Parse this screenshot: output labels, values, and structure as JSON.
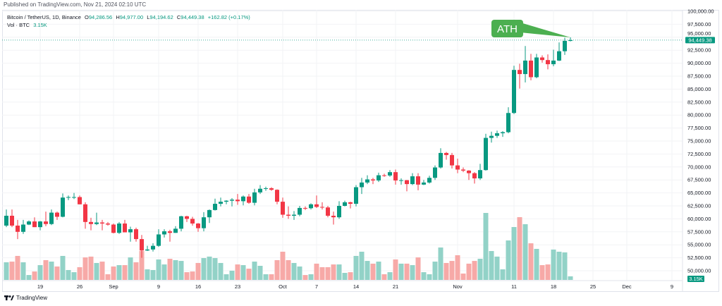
{
  "published": "Published on TradingView.com, Nov 21, 2024 02:10 UTC",
  "legend": {
    "symbol": "Bitcoin / TetherUS, 1D, Binance",
    "o_label": "O",
    "o": "94,286.56",
    "h_label": "H",
    "h": "94,977.00",
    "l_label": "L",
    "l": "94,194.62",
    "c_label": "C",
    "c": "94,449.38",
    "change": "+162.82 (+0.17%)",
    "vol_label": "Vol · BTC",
    "vol": "3.15K"
  },
  "footer": {
    "brand": "TradingView"
  },
  "colors": {
    "up": "#089981",
    "down": "#F23645",
    "vol_up": "#92d2c7",
    "vol_down": "#f7a9a7",
    "annotation": "#4caf50"
  },
  "chart_data": {
    "type": "candlestick",
    "title": "",
    "ylim": [
      50000,
      100000
    ],
    "grid": true,
    "y_ticks": [
      "100,000.00",
      "97,500.00",
      "95,000.00",
      "92,500.00",
      "90,000.00",
      "87,500.00",
      "85,000.00",
      "82,500.00",
      "80,000.00",
      "77,500.00",
      "75,000.00",
      "72,500.00",
      "70,000.00",
      "67,500.00",
      "65,000.00",
      "62,500.00",
      "60,000.00",
      "57,500.00",
      "55,000.00",
      "52,500.00",
      "50,000.00"
    ],
    "x_ticks": [
      {
        "date": "2024-08-19",
        "label": "19"
      },
      {
        "date": "2024-08-26",
        "label": "26"
      },
      {
        "date": "2024-09-01",
        "label": "Sep"
      },
      {
        "date": "2024-09-09",
        "label": "9"
      },
      {
        "date": "2024-09-16",
        "label": "16"
      },
      {
        "date": "2024-09-23",
        "label": "23"
      },
      {
        "date": "2024-10-01",
        "label": "Oct"
      },
      {
        "date": "2024-10-07",
        "label": "7"
      },
      {
        "date": "2024-10-14",
        "label": "14"
      },
      {
        "date": "2024-10-21",
        "label": "21"
      },
      {
        "date": "2024-11-01",
        "label": "Nov"
      },
      {
        "date": "2024-11-11",
        "label": "11"
      },
      {
        "date": "2024-11-18",
        "label": "18"
      },
      {
        "date": "2024-11-25",
        "label": "25"
      },
      {
        "date": "2024-12-01",
        "label": "Dec"
      },
      {
        "date": "2024-12-09",
        "label": "9"
      }
    ],
    "last_price_label": "94,449.38",
    "last_volume_label": "3.15K",
    "annotation": {
      "text": "ATH",
      "date": "2024-11-21",
      "price": 94977
    },
    "candles_columns": [
      "date",
      "open",
      "high",
      "low",
      "close",
      "volume_k"
    ],
    "candles": [
      [
        "2024-08-13",
        58700,
        61800,
        58400,
        60600,
        15.5
      ],
      [
        "2024-08-14",
        60600,
        61800,
        58400,
        58700,
        16.1
      ],
      [
        "2024-08-15",
        58700,
        59800,
        56100,
        57500,
        21.1
      ],
      [
        "2024-08-16",
        57500,
        59800,
        57100,
        58900,
        15.5
      ],
      [
        "2024-08-17",
        58900,
        59700,
        58800,
        59500,
        4.3
      ],
      [
        "2024-08-18",
        59500,
        60300,
        58400,
        58400,
        7.4
      ],
      [
        "2024-08-19",
        58400,
        59600,
        57800,
        59500,
        13.0
      ],
      [
        "2024-08-20",
        59500,
        61400,
        58600,
        59000,
        17.4
      ],
      [
        "2024-08-21",
        59000,
        61800,
        58800,
        61200,
        16.1
      ],
      [
        "2024-08-22",
        61200,
        61400,
        59800,
        60400,
        11.8
      ],
      [
        "2024-08-23",
        60400,
        64900,
        60300,
        64100,
        21.1
      ],
      [
        "2024-08-24",
        64100,
        64500,
        63600,
        64200,
        8.7
      ],
      [
        "2024-08-25",
        64200,
        65000,
        63800,
        64200,
        6.8
      ],
      [
        "2024-08-26",
        64200,
        64500,
        62800,
        62800,
        11.2
      ],
      [
        "2024-08-27",
        62800,
        63200,
        58100,
        59400,
        19.8
      ],
      [
        "2024-08-28",
        59400,
        60200,
        57800,
        59000,
        20.5
      ],
      [
        "2024-08-29",
        59000,
        61200,
        58800,
        59300,
        14.9
      ],
      [
        "2024-08-30",
        59300,
        59800,
        57800,
        59100,
        16.1
      ],
      [
        "2024-08-31",
        59100,
        59400,
        58700,
        58900,
        5.0
      ],
      [
        "2024-09-01",
        58900,
        59100,
        57200,
        57300,
        11.8
      ],
      [
        "2024-09-02",
        57300,
        59400,
        57100,
        59100,
        13.0
      ],
      [
        "2024-09-03",
        59100,
        59800,
        57400,
        57400,
        13.0
      ],
      [
        "2024-09-04",
        57400,
        58500,
        55600,
        58000,
        19.8
      ],
      [
        "2024-09-05",
        58000,
        58300,
        55600,
        56100,
        15.5
      ],
      [
        "2024-09-06",
        56100,
        56900,
        52500,
        53900,
        25.4
      ],
      [
        "2024-09-07",
        53900,
        54800,
        53800,
        54100,
        9.3
      ],
      [
        "2024-09-08",
        54100,
        55300,
        53700,
        54800,
        8.7
      ],
      [
        "2024-09-09",
        54800,
        58000,
        54600,
        57000,
        18.0
      ],
      [
        "2024-09-10",
        57000,
        58000,
        56400,
        57600,
        13.6
      ],
      [
        "2024-09-11",
        57600,
        57900,
        55600,
        57300,
        18.6
      ],
      [
        "2024-09-12",
        57300,
        58600,
        57300,
        58100,
        17.4
      ],
      [
        "2024-09-13",
        58100,
        60600,
        57600,
        60500,
        16.7
      ],
      [
        "2024-09-14",
        60500,
        60600,
        59400,
        60000,
        6.8
      ],
      [
        "2024-09-15",
        60000,
        60400,
        58700,
        59100,
        7.4
      ],
      [
        "2024-09-16",
        59100,
        59200,
        57500,
        58200,
        14.9
      ],
      [
        "2024-09-17",
        58200,
        61300,
        57600,
        60300,
        19.2
      ],
      [
        "2024-09-18",
        60300,
        61800,
        59200,
        61700,
        20.5
      ],
      [
        "2024-09-19",
        61700,
        63900,
        61600,
        62900,
        19.2
      ],
      [
        "2024-09-20",
        62900,
        64100,
        62400,
        63300,
        14.9
      ],
      [
        "2024-09-21",
        63300,
        63600,
        62800,
        63500,
        5.0
      ],
      [
        "2024-09-22",
        63500,
        64000,
        62400,
        63700,
        8.1
      ],
      [
        "2024-09-23",
        63700,
        64800,
        62700,
        63400,
        13.6
      ],
      [
        "2024-09-24",
        63400,
        64500,
        62600,
        64300,
        13.0
      ],
      [
        "2024-09-25",
        64300,
        64800,
        62900,
        63100,
        9.9
      ],
      [
        "2024-09-26",
        63100,
        65800,
        62600,
        65100,
        16.1
      ],
      [
        "2024-09-27",
        65100,
        66500,
        64800,
        65800,
        12.4
      ],
      [
        "2024-09-28",
        65800,
        66200,
        65400,
        65900,
        5.0
      ],
      [
        "2024-09-29",
        65900,
        66100,
        65400,
        65600,
        5.0
      ],
      [
        "2024-09-30",
        65600,
        65700,
        62800,
        63300,
        17.4
      ],
      [
        "2024-10-01",
        63300,
        64100,
        60200,
        60800,
        24.8
      ],
      [
        "2024-10-02",
        60800,
        62400,
        60000,
        60600,
        17.4
      ],
      [
        "2024-10-03",
        60600,
        61500,
        59800,
        60800,
        14.9
      ],
      [
        "2024-10-04",
        60800,
        62500,
        60500,
        62100,
        11.8
      ],
      [
        "2024-10-05",
        62100,
        62400,
        61700,
        62050,
        4.3
      ],
      [
        "2024-10-06",
        62050,
        63000,
        61800,
        62800,
        5.0
      ],
      [
        "2024-10-07",
        62800,
        64500,
        62100,
        62300,
        14.3
      ],
      [
        "2024-10-08",
        62300,
        63200,
        61800,
        62200,
        11.2
      ],
      [
        "2024-10-09",
        62200,
        62500,
        60300,
        60600,
        11.2
      ],
      [
        "2024-10-10",
        60600,
        61400,
        58900,
        60300,
        13.6
      ],
      [
        "2024-10-11",
        60300,
        63400,
        60000,
        62500,
        13.6
      ],
      [
        "2024-10-12",
        62500,
        63500,
        62400,
        63200,
        6.2
      ],
      [
        "2024-10-13",
        63200,
        63300,
        62000,
        62900,
        6.8
      ],
      [
        "2024-10-14",
        62900,
        66500,
        62400,
        66100,
        21.1
      ],
      [
        "2024-10-15",
        66100,
        67900,
        64800,
        67000,
        24.8
      ],
      [
        "2024-10-16",
        67000,
        68400,
        66700,
        67600,
        16.7
      ],
      [
        "2024-10-17",
        67600,
        67900,
        66700,
        67400,
        14.3
      ],
      [
        "2024-10-18",
        67400,
        68900,
        67100,
        68400,
        16.1
      ],
      [
        "2024-10-19",
        68400,
        68700,
        68100,
        68350,
        5.0
      ],
      [
        "2024-10-20",
        68350,
        69400,
        68100,
        69000,
        6.8
      ],
      [
        "2024-10-21",
        69000,
        69500,
        66600,
        67400,
        18.0
      ],
      [
        "2024-10-22",
        67400,
        67800,
        66600,
        67450,
        14.3
      ],
      [
        "2024-10-23",
        67450,
        67500,
        65300,
        66700,
        14.3
      ],
      [
        "2024-10-24",
        66700,
        68800,
        66500,
        68200,
        13.0
      ],
      [
        "2024-10-25",
        68200,
        68800,
        65500,
        66600,
        19.8
      ],
      [
        "2024-10-26",
        66600,
        67500,
        66500,
        67000,
        6.8
      ],
      [
        "2024-10-27",
        67000,
        68300,
        66800,
        67900,
        5.0
      ],
      [
        "2024-10-28",
        67900,
        70300,
        67500,
        69900,
        16.1
      ],
      [
        "2024-10-29",
        69900,
        73600,
        69700,
        72700,
        28.5
      ],
      [
        "2024-10-30",
        72700,
        72900,
        71400,
        72300,
        14.9
      ],
      [
        "2024-10-31",
        72300,
        72700,
        69700,
        70300,
        16.7
      ],
      [
        "2024-11-01",
        70300,
        71600,
        68800,
        69500,
        21.7
      ],
      [
        "2024-11-02",
        69500,
        69900,
        69000,
        69300,
        5.6
      ],
      [
        "2024-11-03",
        69300,
        69400,
        67500,
        68800,
        14.3
      ],
      [
        "2024-11-04",
        68800,
        69000,
        66800,
        67800,
        16.7
      ],
      [
        "2024-11-05",
        67800,
        70600,
        67500,
        69400,
        18.6
      ],
      [
        "2024-11-06",
        69400,
        76400,
        69300,
        75600,
        58.9
      ],
      [
        "2024-11-07",
        75600,
        76800,
        74700,
        76000,
        25.4
      ],
      [
        "2024-11-08",
        76000,
        77000,
        75600,
        76500,
        20.5
      ],
      [
        "2024-11-09",
        76500,
        76900,
        75800,
        76700,
        9.3
      ],
      [
        "2024-11-10",
        76700,
        81500,
        76500,
        80400,
        34.7
      ],
      [
        "2024-11-11",
        80400,
        89500,
        80200,
        88700,
        46.5
      ],
      [
        "2024-11-12",
        88700,
        89900,
        85100,
        87900,
        55.2
      ],
      [
        "2024-11-13",
        87900,
        93300,
        86300,
        90500,
        49.0
      ],
      [
        "2024-11-14",
        90500,
        91800,
        86700,
        87300,
        32.2
      ],
      [
        "2024-11-15",
        87300,
        91800,
        87100,
        91100,
        27.3
      ],
      [
        "2024-11-16",
        91100,
        91500,
        90100,
        90600,
        13.0
      ],
      [
        "2024-11-17",
        90600,
        91700,
        88800,
        89800,
        13.6
      ],
      [
        "2024-11-18",
        89800,
        92600,
        89400,
        90500,
        26.7
      ],
      [
        "2024-11-19",
        90500,
        94000,
        90400,
        92300,
        24.8
      ],
      [
        "2024-11-20",
        92300,
        94900,
        91600,
        94300,
        24.2
      ],
      [
        "2024-11-21",
        94286.56,
        94977,
        94194.62,
        94449.38,
        3.15
      ]
    ]
  }
}
